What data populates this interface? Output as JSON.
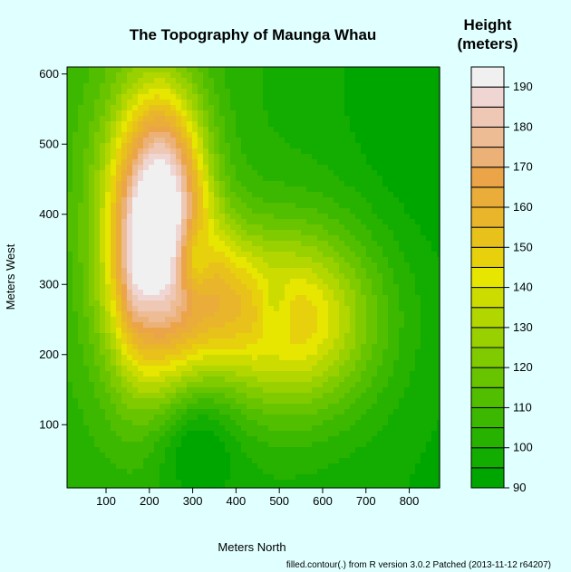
{
  "chart_data": {
    "type": "heatmap",
    "subtype": "filled-contour",
    "title": "The Topography of Maunga Whau",
    "xlabel": "Meters North",
    "ylabel": "Meters West",
    "xlim": [
      10,
      870
    ],
    "ylim": [
      10,
      610
    ],
    "xticks": [
      "100",
      "200",
      "300",
      "400",
      "500",
      "600",
      "700",
      "800"
    ],
    "yticks": [
      "100",
      "200",
      "300",
      "400",
      "500",
      "600"
    ],
    "legend_title": [
      "Height",
      "(meters)"
    ],
    "levels": [
      90,
      95,
      100,
      105,
      110,
      115,
      120,
      125,
      130,
      135,
      140,
      145,
      150,
      155,
      160,
      165,
      170,
      175,
      180,
      185,
      190,
      195
    ],
    "level_labels": [
      "90",
      "100",
      "110",
      "120",
      "130",
      "140",
      "150",
      "160",
      "170",
      "180",
      "190"
    ],
    "level_colors": [
      "#00A600",
      "#13AC00",
      "#27B200",
      "#3CB800",
      "#52BE00",
      "#69C400",
      "#80CA00",
      "#99D000",
      "#B2D600",
      "#CCDC00",
      "#E6E600",
      "#E7D10D",
      "#E8C21A",
      "#E9B62B",
      "#EAAD39",
      "#EBA548",
      "#ECB176",
      "#EDBC95",
      "#EEC8B4",
      "#EFD6D2",
      "#F0F0F0"
    ],
    "grid": false,
    "legend_position": "right",
    "footnote": "filled.contour(.) from R version 3.0.2 Patched (2013-11-12 r64207)"
  }
}
